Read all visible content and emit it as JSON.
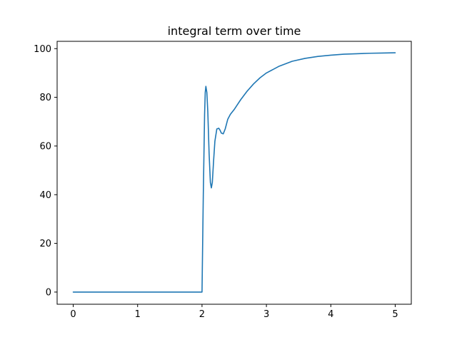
{
  "chart_data": {
    "type": "line",
    "title": "integral term over time",
    "xlabel": "",
    "ylabel": "",
    "xlim": [
      -0.25,
      5.25
    ],
    "ylim": [
      -5,
      103
    ],
    "xticks": [
      0,
      1,
      2,
      3,
      4,
      5
    ],
    "yticks": [
      0,
      20,
      40,
      60,
      80,
      100
    ],
    "grid": false,
    "legend": "none",
    "series": [
      {
        "color": "#1f77b4",
        "x": [
          0,
          0.5,
          1,
          1.5,
          1.99,
          2.0,
          2.02,
          2.04,
          2.05,
          2.06,
          2.075,
          2.09,
          2.11,
          2.13,
          2.145,
          2.16,
          2.18,
          2.2,
          2.23,
          2.26,
          2.28,
          2.3,
          2.33,
          2.36,
          2.38,
          2.4,
          2.44,
          2.5,
          2.55,
          2.6,
          2.7,
          2.8,
          2.9,
          3.0,
          3.2,
          3.4,
          3.6,
          3.8,
          4.0,
          4.2,
          4.4,
          4.6,
          4.8,
          5.0
        ],
        "y": [
          0,
          0,
          0,
          0,
          0,
          0,
          40,
          73,
          82,
          84.5,
          82,
          74,
          57,
          45,
          42.8,
          45,
          54,
          62,
          67,
          67.3,
          66.5,
          65.3,
          65,
          67,
          69,
          71,
          73,
          75,
          77,
          79,
          82.5,
          85.5,
          88,
          90,
          92.8,
          94.8,
          96,
          96.8,
          97.3,
          97.7,
          97.9,
          98.1,
          98.2,
          98.3
        ]
      }
    ]
  }
}
